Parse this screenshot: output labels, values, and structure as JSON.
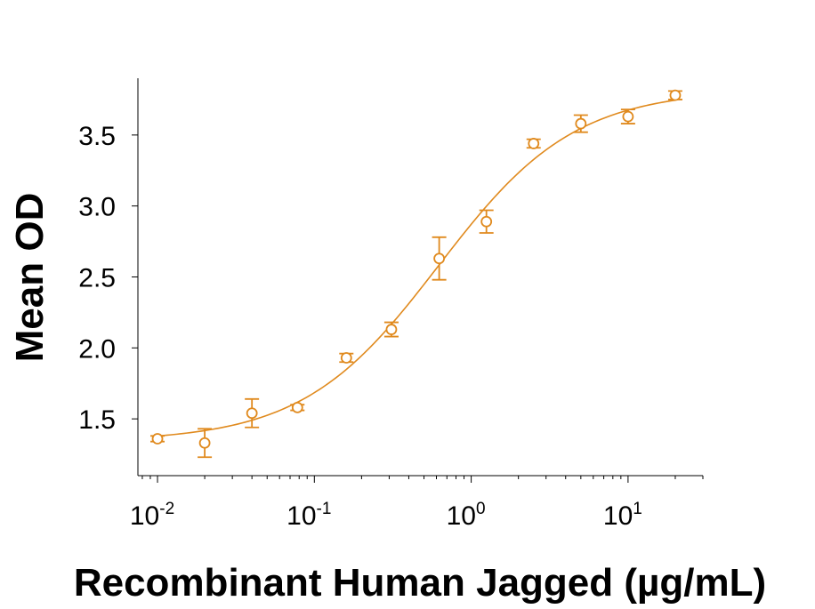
{
  "chart_data": {
    "type": "scatter",
    "title": "",
    "xlabel": "Recombinant Human Jagged (µg/mL)",
    "ylabel": "Mean OD",
    "x_scale": "log",
    "xlim": [
      0.0075,
      30
    ],
    "ylim": [
      1.1,
      3.9
    ],
    "x_ticks": [
      {
        "value": 0.01,
        "base": "10",
        "exp": "-2"
      },
      {
        "value": 0.1,
        "base": "10",
        "exp": "-1"
      },
      {
        "value": 1,
        "base": "10",
        "exp": "0"
      },
      {
        "value": 10,
        "base": "10",
        "exp": "1"
      }
    ],
    "y_ticks": [
      {
        "value": 1.5,
        "label": "1.5"
      },
      {
        "value": 2.0,
        "label": "2.0"
      },
      {
        "value": 2.5,
        "label": "2.5"
      },
      {
        "value": 3.0,
        "label": "3.0"
      },
      {
        "value": 3.5,
        "label": "3.5"
      }
    ],
    "grid": false,
    "color": "#E08A1E",
    "series": [
      {
        "points": [
          {
            "x": 0.01,
            "y": 1.36,
            "err": 0.02
          },
          {
            "x": 0.02,
            "y": 1.33,
            "err": 0.1
          },
          {
            "x": 0.04,
            "y": 1.54,
            "err": 0.1
          },
          {
            "x": 0.078,
            "y": 1.58,
            "err": 0.02
          },
          {
            "x": 0.16,
            "y": 1.93,
            "err": 0.03
          },
          {
            "x": 0.31,
            "y": 2.13,
            "err": 0.05
          },
          {
            "x": 0.625,
            "y": 2.63,
            "err": 0.15
          },
          {
            "x": 1.25,
            "y": 2.89,
            "err": 0.08
          },
          {
            "x": 2.5,
            "y": 3.44,
            "err": 0.03
          },
          {
            "x": 5,
            "y": 3.58,
            "err": 0.06
          },
          {
            "x": 10,
            "y": 3.63,
            "err": 0.05
          },
          {
            "x": 20,
            "y": 3.78,
            "err": 0.03
          }
        ],
        "fit": {
          "model": "4PL",
          "bottom": 1.34,
          "top": 3.82,
          "ec50": 0.62,
          "hill": 1.0
        }
      }
    ]
  }
}
